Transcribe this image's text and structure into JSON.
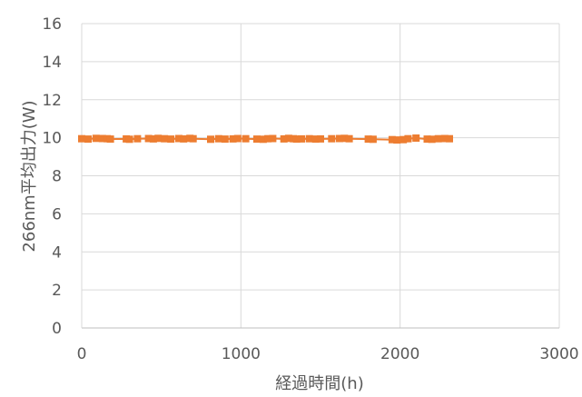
{
  "chart_data": {
    "type": "line",
    "title": "",
    "xlabel": "経過時間(h)",
    "ylabel": "266nm平均出力(W)",
    "xlim": [
      0,
      3000
    ],
    "ylim": [
      0,
      16
    ],
    "x_ticks": [
      "0",
      "1000",
      "2000",
      "3000"
    ],
    "y_ticks": [
      "0",
      "2",
      "4",
      "6",
      "8",
      "10",
      "12",
      "14",
      "16"
    ],
    "grid": true,
    "legend": "none",
    "series": [
      {
        "color": "#ED7D31",
        "x": [
          0,
          40,
          90,
          130,
          160,
          180,
          280,
          300,
          350,
          420,
          450,
          480,
          520,
          560,
          610,
          640,
          680,
          700,
          810,
          860,
          900,
          950,
          980,
          1030,
          1100,
          1140,
          1170,
          1200,
          1270,
          1300,
          1330,
          1350,
          1380,
          1430,
          1470,
          1500,
          1570,
          1620,
          1650,
          1680,
          1800,
          1830,
          1950,
          1980,
          2020,
          2050,
          2100,
          2170,
          2200,
          2240,
          2280,
          2310
        ],
        "y": [
          9.95,
          9.93,
          9.97,
          9.96,
          9.95,
          9.93,
          9.94,
          9.92,
          9.95,
          9.96,
          9.94,
          9.97,
          9.95,
          9.93,
          9.96,
          9.94,
          9.97,
          9.95,
          9.92,
          9.95,
          9.93,
          9.94,
          9.96,
          9.95,
          9.93,
          9.92,
          9.95,
          9.96,
          9.94,
          9.97,
          9.95,
          9.93,
          9.94,
          9.95,
          9.93,
          9.94,
          9.95,
          9.96,
          9.97,
          9.95,
          9.93,
          9.92,
          9.9,
          9.88,
          9.9,
          9.95,
          9.98,
          9.93,
          9.92,
          9.95,
          9.96,
          9.95
        ]
      }
    ]
  }
}
